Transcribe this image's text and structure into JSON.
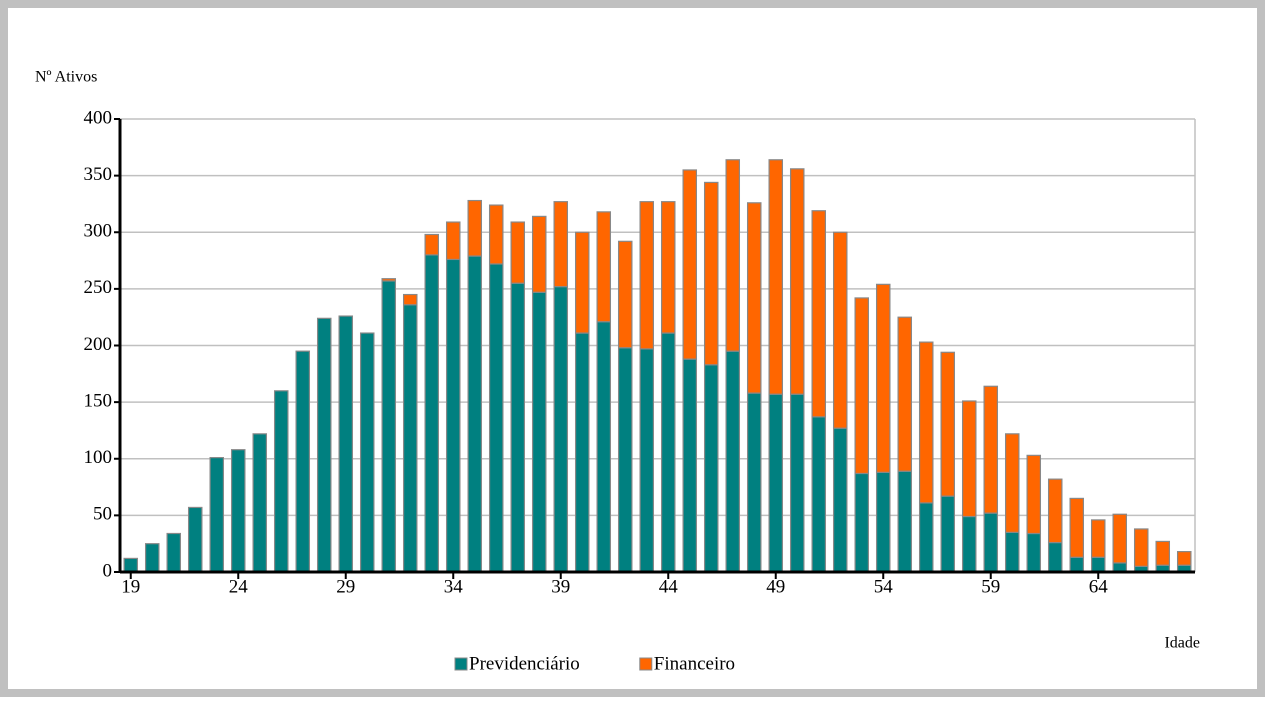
{
  "chart_data": {
    "type": "bar",
    "stacked": true,
    "y_label": "Nº Ativos",
    "x_label": "Idade",
    "x": [
      19,
      20,
      21,
      22,
      23,
      24,
      25,
      26,
      27,
      28,
      29,
      30,
      31,
      32,
      33,
      34,
      35,
      36,
      37,
      38,
      39,
      40,
      41,
      42,
      43,
      44,
      45,
      46,
      47,
      48,
      49,
      50,
      51,
      52,
      53,
      54,
      55,
      56,
      57,
      58,
      59,
      60,
      61,
      62,
      63,
      64,
      65,
      66,
      67,
      68
    ],
    "series": [
      {
        "name": "Previdenciário",
        "color": "#008080",
        "values": [
          12,
          25,
          34,
          57,
          101,
          108,
          122,
          160,
          195,
          224,
          226,
          211,
          257,
          236,
          280,
          276,
          279,
          272,
          255,
          247,
          252,
          211,
          221,
          198,
          197,
          211,
          188,
          183,
          195,
          158,
          157,
          157,
          137,
          127,
          87,
          88,
          89,
          61,
          67,
          49,
          52,
          35,
          34,
          26,
          13,
          13,
          8,
          5,
          6,
          6
        ]
      },
      {
        "name": "Financeiro",
        "color": "#ff6600",
        "values": [
          0,
          0,
          0,
          0,
          0,
          0,
          0,
          0,
          0,
          0,
          0,
          0,
          2,
          9,
          18,
          33,
          49,
          52,
          54,
          67,
          75,
          89,
          97,
          94,
          130,
          116,
          167,
          161,
          169,
          168,
          207,
          199,
          182,
          173,
          155,
          166,
          136,
          142,
          127,
          102,
          112,
          87,
          69,
          56,
          52,
          33,
          43,
          33,
          21,
          12
        ]
      }
    ],
    "xlim": [
      18.5,
      68.5
    ],
    "xticks": [
      19,
      24,
      29,
      34,
      39,
      44,
      49,
      54,
      59,
      64
    ],
    "ylim": [
      0,
      400
    ],
    "yticks": [
      0,
      50,
      100,
      150,
      200,
      250,
      300,
      350,
      400
    ],
    "grid": true,
    "legend": "bottom"
  }
}
